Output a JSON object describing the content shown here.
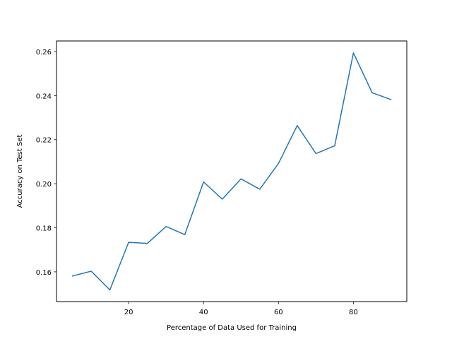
{
  "chart_data": {
    "type": "line",
    "title": "",
    "xlabel": "Percentage of Data Used for Training",
    "ylabel": "Accuracy on Test Set",
    "xlim": [
      0.75,
      94.25
    ],
    "ylim": [
      0.1465,
      0.2648
    ],
    "xticks": [
      20,
      40,
      60,
      80
    ],
    "xtick_labels": [
      "20",
      "40",
      "60",
      "80"
    ],
    "yticks": [
      0.16,
      0.18,
      0.2,
      0.22,
      0.24,
      0.26
    ],
    "ytick_labels": [
      "0.16",
      "0.18",
      "0.20",
      "0.22",
      "0.24",
      "0.26"
    ],
    "grid": false,
    "legend": "none",
    "series": [
      {
        "color": "#1f77b4",
        "x": [
          5,
          10,
          15,
          20,
          25,
          30,
          35,
          40,
          45,
          50,
          55,
          60,
          65,
          70,
          75,
          80,
          85,
          90
        ],
        "y": [
          0.1581,
          0.1603,
          0.1518,
          0.1734,
          0.1729,
          0.1806,
          0.1769,
          0.2008,
          0.193,
          0.2022,
          0.1975,
          0.2092,
          0.2264,
          0.2137,
          0.2172,
          0.2594,
          0.2413,
          0.2382
        ]
      }
    ]
  }
}
